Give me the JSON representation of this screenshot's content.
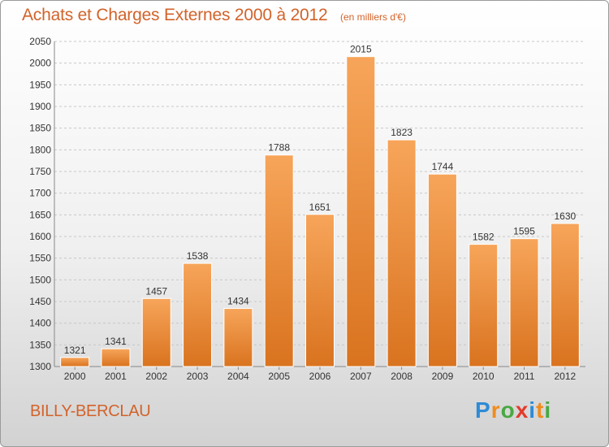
{
  "header": {
    "title": "Achats et Charges Externes 2000 à 2012",
    "unit": "(en milliers d'€)"
  },
  "footer": {
    "place": "BILLY-BERCLAU",
    "brand": "Proxiti",
    "brand_letters": [
      {
        "char": "P",
        "color": "#2e8bd6"
      },
      {
        "char": "r",
        "color": "#f08c1e"
      },
      {
        "char": "o",
        "color": "#49a842"
      },
      {
        "char": "x",
        "color": "#e33b2c"
      },
      {
        "char": "i",
        "color": "#2e8bd6"
      },
      {
        "char": "t",
        "color": "#f08c1e"
      },
      {
        "char": "i",
        "color": "#49a842"
      }
    ]
  },
  "colors": {
    "title": "#d2632a",
    "bar_top": "#f7a55a",
    "bar_bottom": "#d9731f",
    "grid": "#c8c8c8"
  },
  "chart_data": {
    "type": "bar",
    "title": "Achats et Charges Externes 2000 à 2012",
    "subtitle": "(en milliers d'€)",
    "categories": [
      "2000",
      "2001",
      "2002",
      "2003",
      "2004",
      "2005",
      "2006",
      "2007",
      "2008",
      "2009",
      "2010",
      "2011",
      "2012"
    ],
    "values": [
      1321,
      1341,
      1457,
      1538,
      1434,
      1788,
      1651,
      2015,
      1823,
      1744,
      1582,
      1595,
      1630
    ],
    "ylim": [
      1300,
      2050
    ],
    "yticks": [
      1300,
      1350,
      1400,
      1450,
      1500,
      1550,
      1600,
      1650,
      1700,
      1750,
      1800,
      1850,
      1900,
      1950,
      2000,
      2050
    ],
    "grid": true,
    "xlabel": "",
    "ylabel": ""
  }
}
